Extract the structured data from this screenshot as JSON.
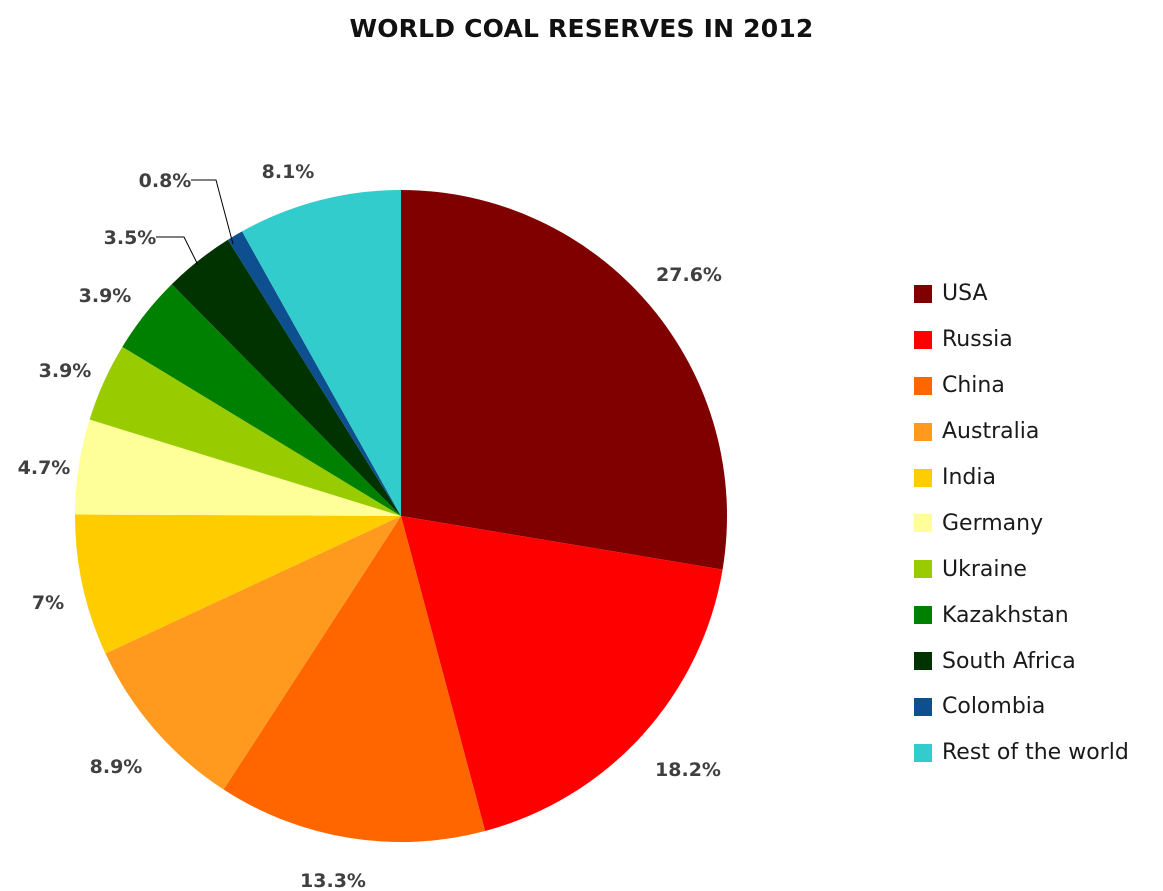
{
  "chart_data": {
    "type": "pie",
    "title": "WORLD COAL RESERVES IN 2012",
    "legend_position": "right",
    "slices": [
      {
        "name": "USA",
        "value": 27.6,
        "label": "27.6%",
        "color": "#800000"
      },
      {
        "name": "Russia",
        "value": 18.2,
        "label": "18.2%",
        "color": "#ff0000"
      },
      {
        "name": "China",
        "value": 13.3,
        "label": "13.3%",
        "color": "#ff6600"
      },
      {
        "name": "Australia",
        "value": 8.9,
        "label": "8.9%",
        "color": "#ff9a1f"
      },
      {
        "name": "India",
        "value": 7,
        "label": "7%",
        "color": "#ffcc00"
      },
      {
        "name": "Germany",
        "value": 4.7,
        "label": "4.7%",
        "color": "#ffff99"
      },
      {
        "name": "Ukraine",
        "value": 3.9,
        "label": "3.9%",
        "color": "#99cc00"
      },
      {
        "name": "Kazakhstan",
        "value": 3.9,
        "label": "3.9%",
        "color": "#008000"
      },
      {
        "name": "South Africa",
        "value": 3.5,
        "label": "3.5%",
        "color": "#003300"
      },
      {
        "name": "Colombia",
        "value": 0.8,
        "label": "0.8%",
        "color": "#0d4f8f"
      },
      {
        "name": "Rest of the world",
        "value": 8.1,
        "label": "8.1%",
        "color": "#33cccc"
      }
    ]
  }
}
